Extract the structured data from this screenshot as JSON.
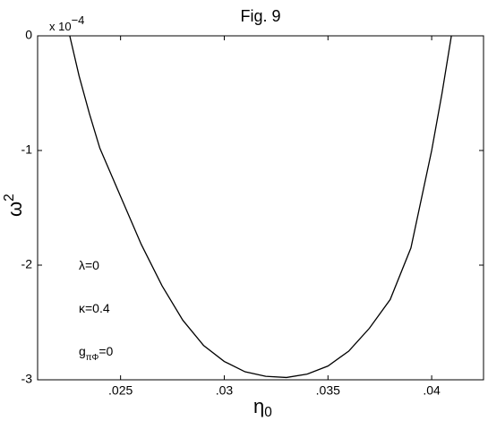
{
  "chart_data": {
    "type": "line",
    "title": "Fig. 9",
    "xlabel": {
      "text": "η",
      "sub": "0"
    },
    "ylabel": {
      "text": "ω",
      "sup": "2"
    },
    "y_exponent": {
      "text": "x 10",
      "sup": "−4"
    },
    "annotations": [
      {
        "text": "λ=0"
      },
      {
        "text": "κ=0.4"
      },
      {
        "text": "g",
        "sub": "πΦ",
        "after": "=0"
      }
    ],
    "x": [
      0.02255,
      0.023,
      0.0235,
      0.024,
      0.025,
      0.026,
      0.027,
      0.028,
      0.029,
      0.03,
      0.031,
      0.032,
      0.033,
      0.034,
      0.035,
      0.036,
      0.037,
      0.038,
      0.039,
      0.04,
      0.0405,
      0.04095
    ],
    "series": [
      {
        "color": "#000000",
        "values": [
          0,
          -0.35,
          -0.68,
          -0.98,
          -1.4,
          -1.82,
          -2.18,
          -2.48,
          -2.7,
          -2.84,
          -2.93,
          -2.97,
          -2.98,
          -2.95,
          -2.88,
          -2.75,
          -2.55,
          -2.3,
          -1.85,
          -1.0,
          -0.5,
          0
        ]
      }
    ],
    "xlim": [
      0.021,
      0.0425
    ],
    "ylim": [
      -3,
      0
    ],
    "xticks": [
      {
        "value": 0.025,
        "label": ".025"
      },
      {
        "value": 0.03,
        "label": ".03"
      },
      {
        "value": 0.035,
        "label": ".035"
      },
      {
        "value": 0.04,
        "label": ".04"
      }
    ],
    "yticks": [
      0,
      -1,
      -2,
      -3
    ],
    "grid": false
  }
}
